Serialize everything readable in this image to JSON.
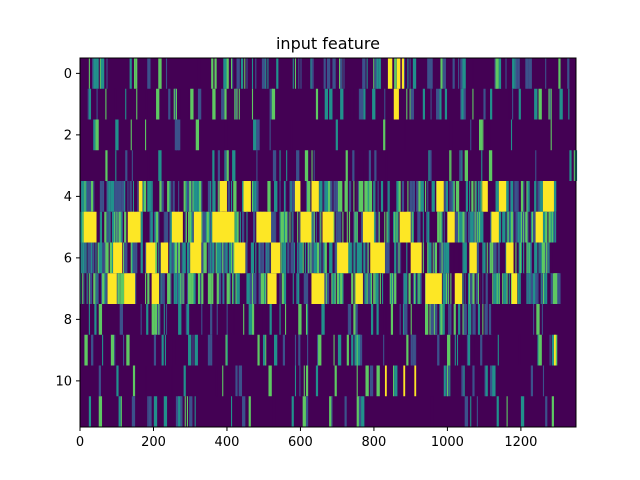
{
  "chart_data": {
    "type": "heatmap",
    "title": "input feature",
    "xlabel": "",
    "ylabel": "",
    "xlim": [
      0,
      1350
    ],
    "ylim": [
      11.5,
      -0.5
    ],
    "x_ticks": [
      0,
      200,
      400,
      600,
      800,
      1000,
      1200
    ],
    "y_ticks": [
      0,
      2,
      4,
      6,
      8,
      10
    ],
    "n_rows": 12,
    "n_cols": 1350,
    "grid": false,
    "colormap": "viridis",
    "colormap_stops": [
      "#440154",
      "#3b528b",
      "#21918c",
      "#5ec962",
      "#fde725"
    ],
    "background_value_color": "#440154",
    "rows": [
      {
        "row": 0,
        "density": 0.18,
        "bright_runs": [
          [
            838,
            850
          ],
          [
            862,
            872
          ],
          [
            876,
            882
          ]
        ],
        "data_extent": [
          0,
          1350
        ]
      },
      {
        "row": 1,
        "density": 0.15,
        "bright_runs": [
          [
            854,
            868
          ]
        ],
        "data_extent": [
          0,
          1350
        ]
      },
      {
        "row": 2,
        "density": 0.06,
        "bright_runs": [],
        "data_extent": [
          0,
          1350
        ]
      },
      {
        "row": 3,
        "density": 0.1,
        "bright_runs": [],
        "data_extent": [
          0,
          1350
        ]
      },
      {
        "row": 4,
        "density": 0.45,
        "bright_runs": [
          [
            160,
            170
          ],
          [
            380,
            400
          ],
          [
            445,
            465
          ],
          [
            585,
            600
          ],
          [
            630,
            650
          ],
          [
            970,
            990
          ],
          [
            1095,
            1110
          ],
          [
            1140,
            1160
          ],
          [
            1260,
            1290
          ]
        ],
        "data_extent": [
          0,
          1300
        ]
      },
      {
        "row": 5,
        "density": 0.6,
        "bright_runs": [
          [
            10,
            45
          ],
          [
            130,
            165
          ],
          [
            250,
            280
          ],
          [
            310,
            330
          ],
          [
            360,
            420
          ],
          [
            480,
            520
          ],
          [
            600,
            630
          ],
          [
            660,
            690
          ],
          [
            770,
            800
          ],
          [
            870,
            900
          ],
          [
            1000,
            1020
          ],
          [
            1120,
            1140
          ],
          [
            1240,
            1260
          ]
        ],
        "data_extent": [
          0,
          1300
        ]
      },
      {
        "row": 6,
        "density": 0.55,
        "bright_runs": [
          [
            90,
            115
          ],
          [
            180,
            205
          ],
          [
            220,
            240
          ],
          [
            300,
            330
          ],
          [
            420,
            450
          ],
          [
            520,
            545
          ],
          [
            700,
            730
          ],
          [
            790,
            830
          ],
          [
            900,
            930
          ],
          [
            1060,
            1080
          ],
          [
            1160,
            1180
          ]
        ],
        "data_extent": [
          0,
          1300
        ]
      },
      {
        "row": 7,
        "density": 0.5,
        "bright_runs": [
          [
            75,
            100
          ],
          [
            120,
            150
          ],
          [
            195,
            215
          ],
          [
            510,
            535
          ],
          [
            630,
            665
          ],
          [
            750,
            770
          ],
          [
            940,
            985
          ],
          [
            1020,
            1040
          ],
          [
            1175,
            1190
          ]
        ],
        "data_extent": [
          0,
          1300
        ]
      },
      {
        "row": 8,
        "density": 0.15,
        "bright_runs": [],
        "data_extent": [
          0,
          1300
        ]
      },
      {
        "row": 9,
        "density": 0.12,
        "bright_runs": [
          [
            1290,
            1295
          ]
        ],
        "data_extent": [
          0,
          1300
        ]
      },
      {
        "row": 10,
        "density": 0.1,
        "bright_runs": [
          [
            830,
            835
          ],
          [
            880,
            885
          ],
          [
            910,
            915
          ]
        ],
        "data_extent": [
          0,
          1300
        ]
      },
      {
        "row": 11,
        "density": 0.12,
        "bright_runs": [],
        "data_extent": [
          0,
          1300
        ]
      }
    ]
  }
}
